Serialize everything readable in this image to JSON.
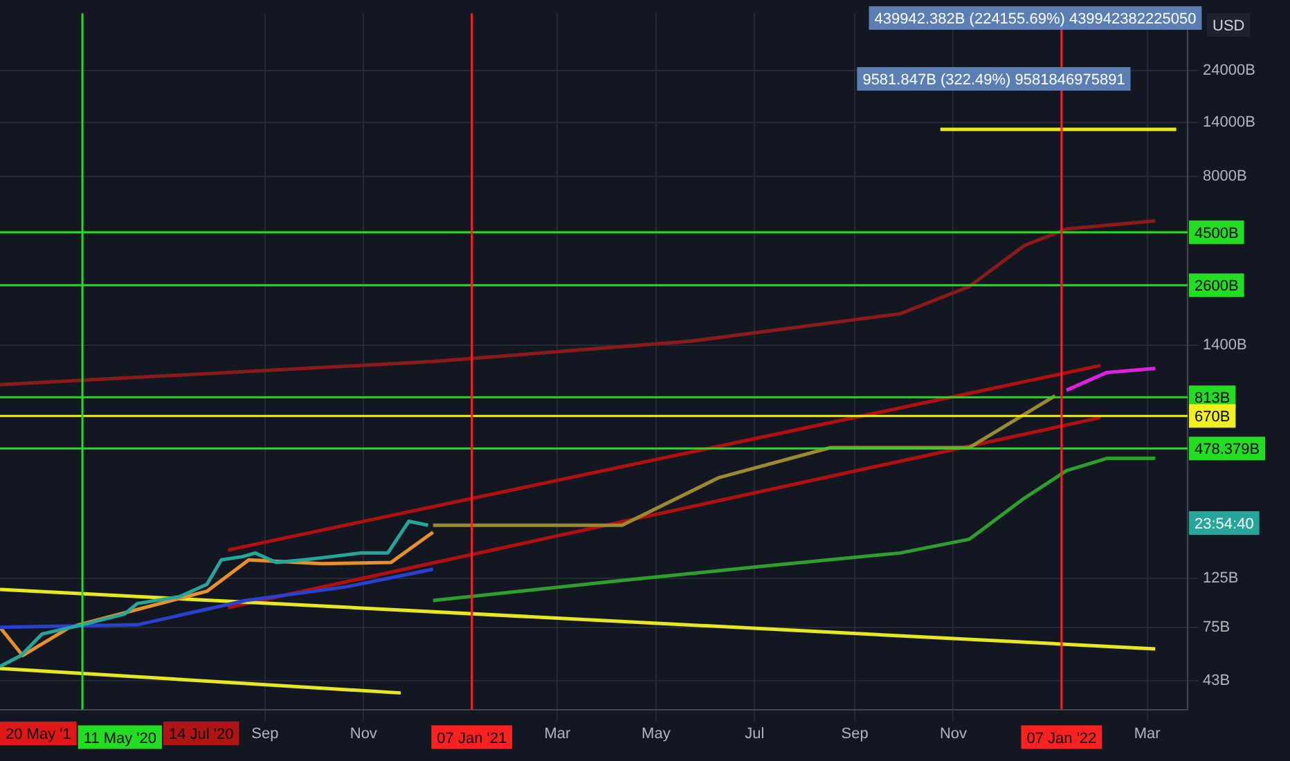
{
  "chart_data": {
    "type": "line",
    "log": "y",
    "grid": true,
    "legend": false,
    "marker": "none",
    "line_style": "solid",
    "xlim": [
      "2020-03-21",
      "2022-03-26"
    ],
    "xticks": [
      {
        "value": "2020-09-01",
        "label": "Sep"
      },
      {
        "value": "2020-11-01",
        "label": "Nov"
      },
      {
        "value": "2021-03-01",
        "label": "Mar"
      },
      {
        "value": "2021-05-01",
        "label": "May"
      },
      {
        "value": "2021-07-01",
        "label": "Jul"
      },
      {
        "value": "2021-09-01",
        "label": "Sep"
      },
      {
        "value": "2021-11-01",
        "label": "Nov"
      },
      {
        "value": "2022-03-01",
        "label": "Mar"
      }
    ],
    "ylim": [
      32,
      43500
    ],
    "yticks": [
      {
        "value": 43,
        "label": "43B"
      },
      {
        "value": 75,
        "label": "75B"
      },
      {
        "value": 125,
        "label": "125B"
      },
      {
        "value": 1400,
        "label": "1400B"
      },
      {
        "value": 8000,
        "label": "8000B"
      },
      {
        "value": 14000,
        "label": "14000B"
      },
      {
        "value": 24000,
        "label": "24000B"
      }
    ],
    "series": [
      {
        "color": "#26a69a",
        "x": [
          "2020-03-21",
          "2020-04-03",
          "2020-04-16",
          "2020-05-11",
          "2020-06-06",
          "2020-06-14",
          "2020-07-10",
          "2020-07-27",
          "2020-08-05",
          "2020-08-18",
          "2020-08-26",
          "2020-09-08",
          "2020-09-25",
          "2020-10-12",
          "2020-10-30",
          "2020-11-16",
          "2020-11-29",
          "2020-12-11"
        ],
        "values": [
          50,
          56,
          70,
          77,
          86,
          96,
          103,
          117,
          151,
          156,
          162,
          147,
          151,
          156,
          162,
          162,
          225,
          216
        ]
      },
      {
        "color": "#2940d0",
        "x": [
          "2020-03-21",
          "2020-06-14",
          "2020-08-20",
          "2020-10-21",
          "2020-12-14"
        ],
        "values": [
          75,
          77,
          99,
          114,
          137
        ]
      },
      {
        "color": "#e8902a",
        "x": [
          "2020-03-21",
          "2020-04-04",
          "2020-05-03",
          "2020-07-27",
          "2020-08-22",
          "2020-10-06",
          "2020-11-18",
          "2020-12-14"
        ],
        "values": [
          75,
          56,
          75,
          109,
          151,
          145,
          147,
          201
        ]
      },
      {
        "color": "#9a8a30",
        "x": [
          "2020-12-14",
          "2021-04-10",
          "2021-06-09",
          "2021-08-17",
          "2021-11-11",
          "2022-01-03"
        ],
        "values": [
          216,
          216,
          354,
          483,
          483,
          826
        ]
      },
      {
        "color": "#8b1a1a",
        "x": [
          "2020-03-21",
          "2020-12-14",
          "2021-05-23",
          "2021-09-29",
          "2021-11-11",
          "2021-12-15",
          "2022-01-10",
          "2022-03-06"
        ],
        "values": [
          927,
          1178,
          1456,
          1932,
          2565,
          3923,
          4650,
          5060
        ]
      },
      {
        "color": "#2e9e2e",
        "x": [
          "2020-12-14",
          "2021-04-10",
          "2021-07-05",
          "2021-09-29",
          "2021-11-11",
          "2021-12-15",
          "2022-01-10",
          "2022-02-04",
          "2022-03-06"
        ],
        "values": [
          99,
          122,
          141,
          162,
          187,
          286,
          380,
          432,
          432
        ]
      },
      {
        "color": "#e020e0",
        "x": [
          "2022-01-10",
          "2022-02-04",
          "2022-03-06"
        ],
        "values": [
          875,
          1052,
          1098
        ]
      },
      {
        "color": "#e8e820",
        "x": [
          "2020-03-21",
          "2022-03-06"
        ],
        "values": [
          111,
          60
        ]
      },
      {
        "color": "#e8e820",
        "x": [
          "2020-03-21",
          "2020-11-24"
        ],
        "values": [
          49,
          38
        ]
      },
      {
        "color": "#e8e820",
        "x": [
          "2021-10-24",
          "2022-03-19"
        ],
        "values": [
          13060,
          13060
        ]
      },
      {
        "color": "#b01010",
        "x": [
          "2020-08-09",
          "2022-01-31"
        ],
        "values": [
          167,
          1130
        ]
      },
      {
        "color": "#b01010",
        "x": [
          "2020-08-09",
          "2022-01-31"
        ],
        "values": [
          92,
          659
        ]
      }
    ],
    "ref_lines": [
      {
        "axis": "y",
        "value": 4500,
        "label": "4500B",
        "color": "#22dd22"
      },
      {
        "axis": "y",
        "value": 2600,
        "label": "2600B",
        "color": "#22dd22"
      },
      {
        "axis": "y",
        "value": 813,
        "label": "813B",
        "color": "#22dd22"
      },
      {
        "axis": "y",
        "value": 670,
        "label": "670B",
        "color": "#f0f020"
      },
      {
        "axis": "y",
        "value": 478.379,
        "label": "478.379B",
        "color": "#22dd22"
      },
      {
        "axis": "x",
        "value": "2020-05-11",
        "label": "11 May '20",
        "color": "#22dd22"
      },
      {
        "axis": "x",
        "value": "2021-01-07",
        "label": "07 Jan '21",
        "color": "#ff2020"
      },
      {
        "axis": "x",
        "value": "2022-01-07",
        "label": "07 Jan '22",
        "color": "#ff2020"
      }
    ],
    "annotations": [
      "USD",
      "20 May '1",
      "14 Jul '20",
      "23:54:40",
      "9581.847B (322.49%) 9581846975891",
      "439942.382B (224155.69%) 439942382225050"
    ]
  }
}
